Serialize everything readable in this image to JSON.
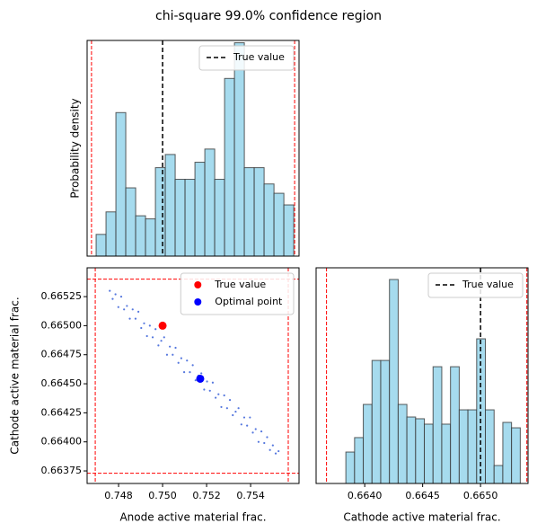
{
  "title": "chi-square 99.0% confidence region",
  "chart_data": [
    {
      "type": "histogram",
      "ylabel": "Probability density",
      "bins": [
        0.74698,
        0.747429,
        0.747878,
        0.748327,
        0.748776,
        0.749225,
        0.749674,
        0.750123,
        0.750572,
        0.751021,
        0.75147,
        0.751919,
        0.752368,
        0.752817,
        0.753266,
        0.753715,
        0.754164,
        0.754613,
        0.755062,
        0.755511,
        0.75596
      ],
      "values": [
        28,
        57,
        185,
        88,
        52,
        48,
        114,
        131,
        99,
        99,
        121,
        138,
        99,
        229,
        275,
        114,
        114,
        93,
        81,
        66
      ],
      "color": "#a6dbee",
      "xlim": [
        0.74657,
        0.7562
      ],
      "ylim": [
        0,
        278
      ],
      "reference_line": {
        "name": "True value",
        "value": 0.75,
        "color": "#000000"
      },
      "bounds": [
        0.74677,
        0.756
      ],
      "bounds_color": "#ff0000",
      "legend": "upper right"
    },
    {
      "type": "scatter",
      "xlabel": "Anode active material frac.",
      "ylabel": "Cathode active material frac.",
      "xlim": [
        0.74657,
        0.7562
      ],
      "ylim": [
        0.663642,
        0.665498
      ],
      "xticks": [
        0.748,
        {
          "value": 0.75,
          "label": "0.750"
        },
        0.752,
        0.754
      ],
      "yticks": [
        0.66525,
        {
          "value": 0.665,
          "label": "0.66500"
        },
        0.66475,
        {
          "value": 0.6645,
          "label": "0.66450"
        },
        0.66425,
        {
          "value": 0.664,
          "label": "0.66400"
        },
        0.66375
      ],
      "points": {
        "color": "#2a55d6",
        "x": [
          0.7476,
          0.74773,
          0.74786,
          0.74799,
          0.74812,
          0.74825,
          0.74838,
          0.74851,
          0.74864,
          0.74877,
          0.7489,
          0.74903,
          0.74916,
          0.74929,
          0.74942,
          0.74955,
          0.74968,
          0.74981,
          0.74994,
          0.75007,
          0.7502,
          0.75033,
          0.75046,
          0.75059,
          0.75072,
          0.75085,
          0.75098,
          0.75111,
          0.75124,
          0.75137,
          0.7515,
          0.75163,
          0.75176,
          0.75189,
          0.75202,
          0.75215,
          0.75228,
          0.75241,
          0.75254,
          0.75267,
          0.7528,
          0.75293,
          0.75306,
          0.75319,
          0.75332,
          0.75345,
          0.75358,
          0.75371,
          0.75384,
          0.75397,
          0.7541,
          0.75423,
          0.75436,
          0.75449,
          0.75462,
          0.75475,
          0.75488,
          0.75501,
          0.75514,
          0.75527
        ],
        "y": [
          0.6653,
          0.66523,
          0.66527,
          0.66516,
          0.66525,
          0.66514,
          0.66517,
          0.66506,
          0.66514,
          0.66506,
          0.66512,
          0.66498,
          0.66502,
          0.66491,
          0.665,
          0.6649,
          0.66497,
          0.66483,
          0.66487,
          0.6649,
          0.66475,
          0.66482,
          0.66475,
          0.66481,
          0.66468,
          0.66472,
          0.6646,
          0.6647,
          0.6646,
          0.66466,
          0.66453,
          0.66457,
          0.66459,
          0.66445,
          0.66452,
          0.66444,
          0.66451,
          0.66438,
          0.66441,
          0.6643,
          0.6644,
          0.66429,
          0.66436,
          0.66423,
          0.66426,
          0.66429,
          0.66415,
          0.66421,
          0.66414,
          0.66421,
          0.66408,
          0.66411,
          0.664,
          0.66409,
          0.66399,
          0.66404,
          0.66393,
          0.66397,
          0.6639,
          0.66392
        ]
      },
      "markers": [
        {
          "name": "True value",
          "x": 0.75,
          "y": 0.665,
          "color": "#ff0000"
        },
        {
          "name": "Optimal point",
          "x": 0.75171,
          "y": 0.664543,
          "color": "#0000ff"
        }
      ],
      "xbounds": [
        0.74694,
        0.75571
      ],
      "ybounds": [
        0.66373,
        0.6654
      ],
      "bounds_color": "#ff0000",
      "legend": "upper right"
    },
    {
      "type": "histogram",
      "xlabel": "Cathode active material frac.",
      "bins": [
        0.663837,
        0.6639123,
        0.6639876,
        0.6640629,
        0.6641382,
        0.6642135,
        0.6642888,
        0.6643641,
        0.6644394,
        0.6645147,
        0.66459,
        0.6646653,
        0.6647406,
        0.6648159,
        0.6648912,
        0.6649665,
        0.6650418,
        0.6651171,
        0.6651924,
        0.6652677,
        0.665343
      ],
      "values": [
        250,
        365,
        629,
        979,
        979,
        1623,
        629,
        529,
        515,
        472,
        929,
        472,
        929,
        586,
        586,
        1151,
        586,
        143,
        486,
        443
      ],
      "color": "#a6dbee",
      "xlim": [
        0.66358,
        0.66541
      ],
      "ylim": [
        0,
        1716
      ],
      "xticks": [
        {
          "value": 0.664,
          "label": "0.6640"
        },
        {
          "value": 0.6645,
          "label": "0.6645"
        },
        {
          "value": 0.665,
          "label": "0.6650"
        }
      ],
      "reference_line": {
        "name": "True value",
        "value": 0.665,
        "color": "#000000"
      },
      "bounds": [
        0.66367,
        0.6654
      ],
      "bounds_color": "#ff0000",
      "legend": "upper right"
    }
  ]
}
